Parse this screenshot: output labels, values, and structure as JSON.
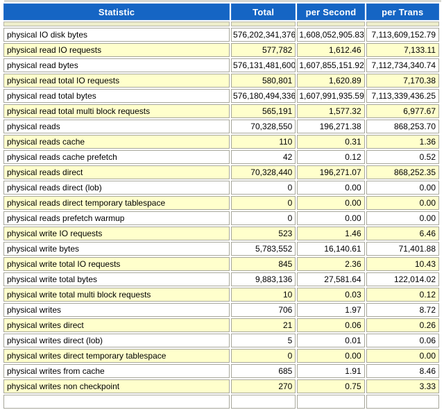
{
  "table": {
    "headers": [
      "Statistic",
      "Total",
      "per Second",
      "per Trans"
    ],
    "rows": [
      [
        "physical IO disk bytes",
        "576,202,341,376",
        "1,608,052,905.83",
        "7,113,609,152.79"
      ],
      [
        "physical read IO requests",
        "577,782",
        "1,612.46",
        "7,133.11"
      ],
      [
        "physical read bytes",
        "576,131,481,600",
        "1,607,855,151.92",
        "7,112,734,340.74"
      ],
      [
        "physical read total IO requests",
        "580,801",
        "1,620.89",
        "7,170.38"
      ],
      [
        "physical read total bytes",
        "576,180,494,336",
        "1,607,991,935.59",
        "7,113,339,436.25"
      ],
      [
        "physical read total multi block requests",
        "565,191",
        "1,577.32",
        "6,977.67"
      ],
      [
        "physical reads",
        "70,328,550",
        "196,271.38",
        "868,253.70"
      ],
      [
        "physical reads cache",
        "110",
        "0.31",
        "1.36"
      ],
      [
        "physical reads cache prefetch",
        "42",
        "0.12",
        "0.52"
      ],
      [
        "physical reads direct",
        "70,328,440",
        "196,271.07",
        "868,252.35"
      ],
      [
        "physical reads direct (lob)",
        "0",
        "0.00",
        "0.00"
      ],
      [
        "physical reads direct temporary tablespace",
        "0",
        "0.00",
        "0.00"
      ],
      [
        "physical reads prefetch warmup",
        "0",
        "0.00",
        "0.00"
      ],
      [
        "physical write IO requests",
        "523",
        "1.46",
        "6.46"
      ],
      [
        "physical write bytes",
        "5,783,552",
        "16,140.61",
        "71,401.88"
      ],
      [
        "physical write total IO requests",
        "845",
        "2.36",
        "10.43"
      ],
      [
        "physical write total bytes",
        "9,883,136",
        "27,581.64",
        "122,014.02"
      ],
      [
        "physical write total multi block requests",
        "10",
        "0.03",
        "0.12"
      ],
      [
        "physical writes",
        "706",
        "1.97",
        "8.72"
      ],
      [
        "physical writes direct",
        "21",
        "0.06",
        "0.26"
      ],
      [
        "physical writes direct (lob)",
        "5",
        "0.01",
        "0.06"
      ],
      [
        "physical writes direct temporary tablespace",
        "0",
        "0.00",
        "0.00"
      ],
      [
        "physical writes from cache",
        "685",
        "1.91",
        "8.46"
      ],
      [
        "physical writes non checkpoint",
        "270",
        "0.75",
        "3.33"
      ]
    ]
  },
  "colors": {
    "header_bg": "#1565c4",
    "header_text": "#ffffff",
    "row_bg": "#ffffff",
    "row_alt_bg": "#ffffcc",
    "spacer_bg": "#ededcb",
    "cell_border": "#a7a79b"
  }
}
